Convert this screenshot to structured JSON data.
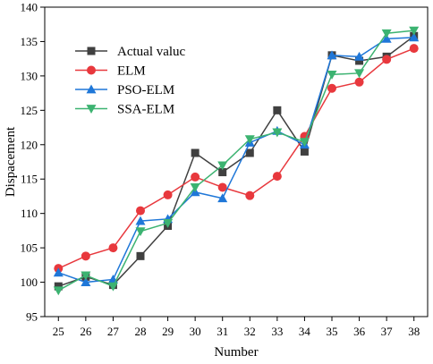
{
  "chart_data": {
    "type": "line",
    "xlabel": "Number",
    "ylabel": "Dispacement",
    "x": [
      25,
      26,
      27,
      28,
      29,
      30,
      31,
      32,
      33,
      34,
      35,
      36,
      37,
      38
    ],
    "xlim": [
      24.5,
      38.5
    ],
    "ylim": [
      95,
      140
    ],
    "yticks": [
      95,
      100,
      105,
      110,
      115,
      120,
      125,
      130,
      135,
      140
    ],
    "grid": false,
    "legend_position": "top-left",
    "series": [
      {
        "name": "Actual valuc",
        "color": "#404040",
        "marker": "square",
        "values": [
          99.4,
          100.8,
          99.6,
          103.8,
          108.2,
          118.8,
          116.0,
          118.8,
          125.0,
          119.0,
          133.0,
          132.2,
          132.8,
          135.8
        ]
      },
      {
        "name": "ELM",
        "color": "#e8383d",
        "marker": "circle",
        "values": [
          102.0,
          103.8,
          105.0,
          110.4,
          112.7,
          115.3,
          113.8,
          112.6,
          115.4,
          121.2,
          128.2,
          129.1,
          132.4,
          134.0
        ]
      },
      {
        "name": "PSO-ELM",
        "color": "#1f77d8",
        "marker": "triangle-up",
        "values": [
          101.4,
          100.0,
          100.4,
          108.9,
          109.2,
          113.1,
          112.2,
          120.3,
          122.0,
          120.0,
          133.0,
          132.8,
          135.4,
          135.6
        ]
      },
      {
        "name": "SSA-ELM",
        "color": "#3cb371",
        "marker": "triangle-down",
        "values": [
          98.8,
          101.0,
          99.4,
          107.4,
          108.6,
          113.8,
          117.0,
          120.8,
          121.8,
          120.4,
          130.2,
          130.4,
          136.2,
          136.6
        ]
      }
    ]
  }
}
